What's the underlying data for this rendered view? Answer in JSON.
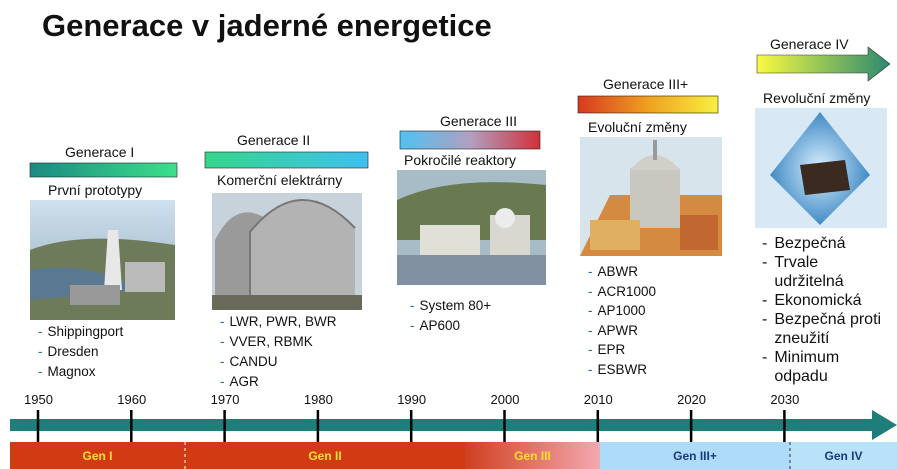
{
  "title": "Generace v jaderné energetice",
  "columns": [
    {
      "generation": "Generace I",
      "subtitle": "První prototypy",
      "items": [
        "Shippingport",
        "Dresden",
        "Magnox"
      ]
    },
    {
      "generation": "Generace II",
      "subtitle": "Komerční elektrárny",
      "items": [
        "LWR, PWR, BWR",
        "VVER, RBMK",
        "CANDU",
        "AGR"
      ]
    },
    {
      "generation": "Generace III",
      "subtitle": "Pokročilé reaktory",
      "items": [
        "System 80+",
        "AP600"
      ]
    },
    {
      "generation": "Generace III+",
      "subtitle": "Evoluční změny",
      "items": [
        "ABWR",
        "ACR1000",
        "AP1000",
        "APWR",
        "EPR",
        "ESBWR"
      ]
    },
    {
      "generation": "Generace IV",
      "subtitle": "Revoluční změny",
      "items": [
        "Bezpečná",
        "Trvale udržitelná",
        "Ekonomická",
        "Bezpečná proti zneužití",
        "Minimum odpadu"
      ]
    }
  ],
  "timeline": {
    "years": [
      1950,
      1960,
      1970,
      1980,
      1990,
      2000,
      2010,
      2020,
      2030
    ],
    "bands": [
      "Gen I",
      "Gen II",
      "Gen III",
      "Gen III+",
      "Gen IV"
    ]
  }
}
